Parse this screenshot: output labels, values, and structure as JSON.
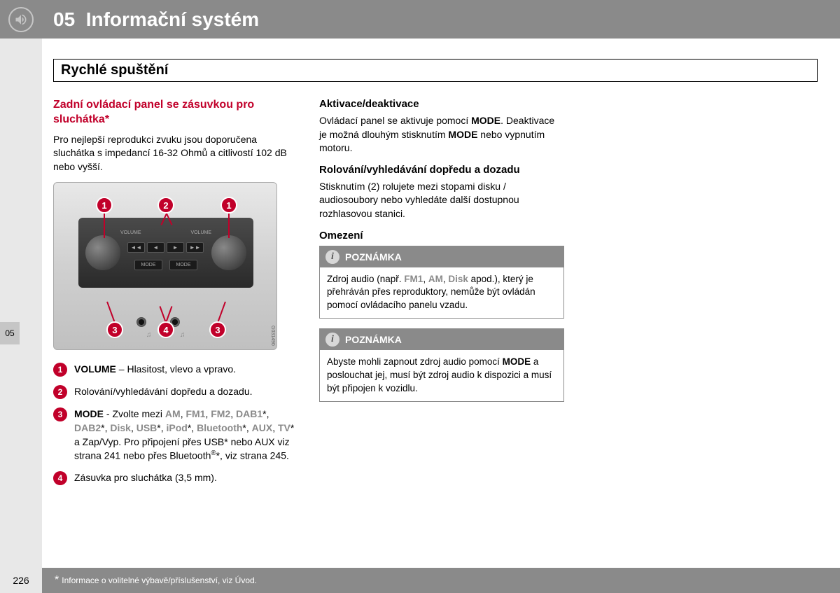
{
  "header": {
    "chapter_num": "05",
    "chapter_title": "Informační systém"
  },
  "section_title": "Rychlé spuštění",
  "side_tab": "05",
  "page_number": "226",
  "footer": {
    "star": "*",
    "text": "Informace o volitelné výbavě/příslušenství, viz Úvod."
  },
  "col1": {
    "heading": "Zadní ovládací panel se zásuvkou pro sluchátka*",
    "intro": "Pro nejlepší reprodukci zvuku jsou doporučena sluchátka s impedancí 16-32 Ohmů a citlivostí 102 dB nebo vyšší.",
    "figure_callouts": {
      "a": "1",
      "b": "2",
      "c": "1",
      "d": "3",
      "e": "4",
      "f": "3"
    },
    "figure_labels": {
      "volume": "VOLUME",
      "mode": "MODE",
      "code": "G031490"
    },
    "legend": [
      {
        "n": "1",
        "html": "<b>VOLUME</b> – Hlasitost, vlevo a vpravo."
      },
      {
        "n": "2",
        "html": "Rolování/vyhledávání dopředu a dozadu."
      },
      {
        "n": "3",
        "html": "<b>MODE</b> - Zvolte mezi <span class='gray-bold'>AM</span>, <span class='gray-bold'>FM1</span>, <span class='gray-bold'>FM2</span>, <span class='gray-bold'>DAB1</span>*, <span class='gray-bold'>DAB2</span>*, <span class='gray-bold'>Disk</span>, <span class='gray-bold'>USB</span>*, <span class='gray-bold'>iPod</span>*, <span class='gray-bold'>Bluetooth</span>*, <span class='gray-bold'>AUX</span>, <span class='gray-bold'>TV</span>* a Zap/Vyp. Pro připojení přes USB* nebo AUX viz strana 241 nebo přes Bluetooth<span class='sup'>®</span>*, viz strana 245."
      },
      {
        "n": "4",
        "html": "Zásuvka pro sluchátka (3,5 mm)."
      }
    ]
  },
  "col2": {
    "s1": {
      "heading": "Aktivace/deaktivace",
      "html": "Ovládací panel se aktivuje pomocí <b>MODE</b>. Deaktivace je možná dlouhým stisknutím <b>MODE</b> nebo vypnutím motoru."
    },
    "s2": {
      "heading": "Rolování/vyhledávání dopředu a dozadu",
      "text": "Stisknutím (2) rolujete mezi stopami disku / audiosoubory nebo vyhledáte další dostupnou rozhlasovou stanici."
    },
    "s3": {
      "heading": "Omezení"
    },
    "note1": {
      "title": "POZNÁMKA",
      "html": "Zdroj audio (např. <span class='gray-bold'>FM1</span>, <span class='gray-bold'>AM</span>, <span class='gray-bold'>Disk</span> apod.), který je přehráván přes reproduktory, nemůže být ovládán pomocí ovládacího panelu vzadu."
    },
    "note2": {
      "title": "POZNÁMKA",
      "html": "Abyste mohli zapnout zdroj audio pomocí <b>MODE</b> a poslouchat jej, musí být zdroj audio k dispozici a musí být připojen k vozidlu."
    }
  }
}
